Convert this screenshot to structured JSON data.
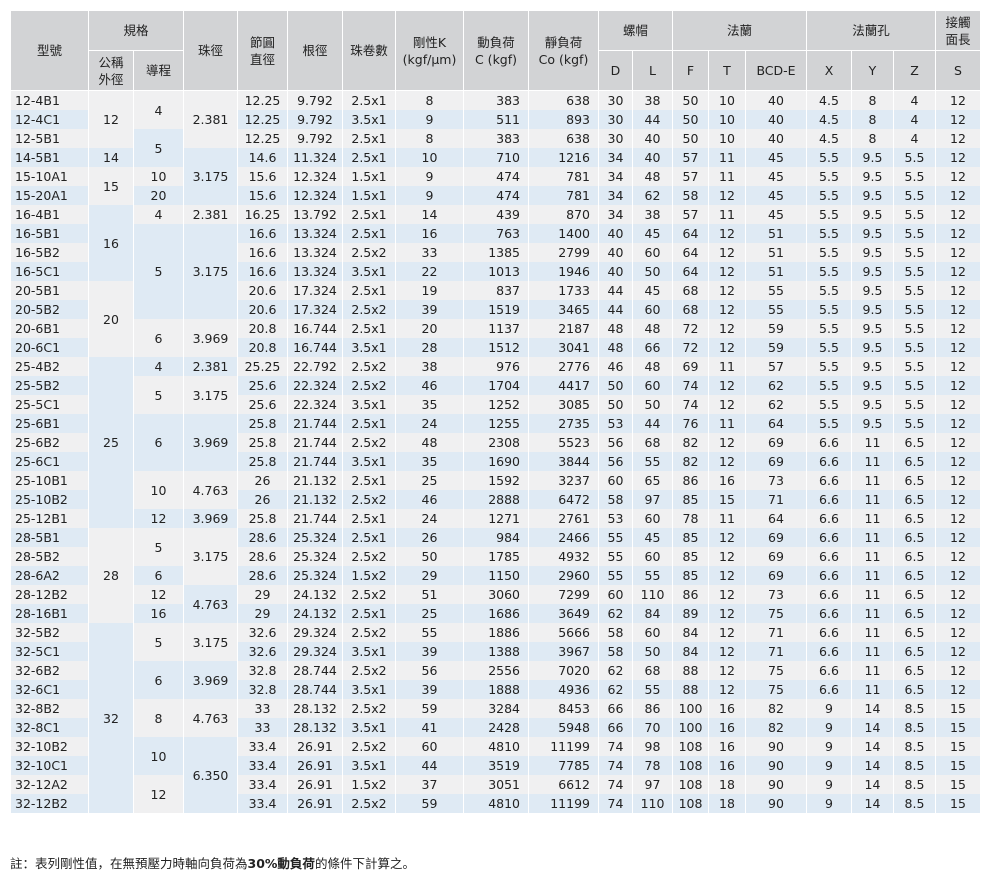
{
  "header": {
    "model": "型號",
    "spec": "規格",
    "diameter": "公稱\n外徑",
    "lead": "導程",
    "ball": "珠徑",
    "pitch": "節圓\n直徑",
    "root": "根徑",
    "turns": "珠卷數",
    "rigidity": "剛性K\n(kgf/μm)",
    "dynamic": "動負荷\nC (kgf)",
    "static": "靜負荷\nCo (kgf)",
    "nut": "螺帽",
    "flange": "法蘭",
    "holes": "法蘭孔",
    "contact": "接觸\n面長",
    "sub": [
      "D",
      "L",
      "F",
      "T",
      "BCD-E",
      "X",
      "Y",
      "Z",
      "S"
    ]
  },
  "diameter": [
    {
      "text": "12",
      "span": 3
    },
    {
      "text": "14",
      "span": 1
    },
    {
      "text": "15",
      "span": 2
    },
    {
      "text": "16",
      "span": 4
    },
    {
      "text": "20",
      "span": 4
    },
    {
      "text": "25",
      "span": 9
    },
    {
      "text": "28",
      "span": 5
    },
    {
      "text": "32",
      "span": 10
    }
  ],
  "lead": [
    {
      "text": "4",
      "span": 2
    },
    {
      "text": "5",
      "span": 2
    },
    {
      "text": "10",
      "span": 1
    },
    {
      "text": "20",
      "span": 1
    },
    {
      "text": "4",
      "span": 1
    },
    {
      "text": "5",
      "span": 5
    },
    {
      "text": "6",
      "span": 2
    },
    {
      "text": "4",
      "span": 1
    },
    {
      "text": "5",
      "span": 2
    },
    {
      "text": "6",
      "span": 3
    },
    {
      "text": "10",
      "span": 2
    },
    {
      "text": "12",
      "span": 1
    },
    {
      "text": "5",
      "span": 2
    },
    {
      "text": "6",
      "span": 1
    },
    {
      "text": "12",
      "span": 1
    },
    {
      "text": "16",
      "span": 1
    },
    {
      "text": "5",
      "span": 2
    },
    {
      "text": "6",
      "span": 2
    },
    {
      "text": "8",
      "span": 2
    },
    {
      "text": "10",
      "span": 2
    },
    {
      "text": "12",
      "span": 2
    }
  ],
  "ball": [
    {
      "text": "2.381",
      "span": 3
    },
    {
      "text": "3.175",
      "span": 3
    },
    {
      "text": "2.381",
      "span": 1
    },
    {
      "text": "3.175",
      "span": 5
    },
    {
      "text": "3.969",
      "span": 2
    },
    {
      "text": "2.381",
      "span": 1
    },
    {
      "text": "3.175",
      "span": 2
    },
    {
      "text": "3.969",
      "span": 3
    },
    {
      "text": "4.763",
      "span": 2
    },
    {
      "text": "3.969",
      "span": 1
    },
    {
      "text": "3.175",
      "span": 3
    },
    {
      "text": "4.763",
      "span": 2
    },
    {
      "text": "3.175",
      "span": 2
    },
    {
      "text": "3.969",
      "span": 2
    },
    {
      "text": "4.763",
      "span": 2
    },
    {
      "text": "6.350",
      "span": 4
    }
  ],
  "rows": [
    [
      "12-4B1",
      "12.25",
      "9.792",
      "2.5x1",
      "8",
      "383",
      "638",
      "30",
      "38",
      "50",
      "10",
      "40",
      "4.5",
      "8",
      "4",
      "12"
    ],
    [
      "12-4C1",
      "12.25",
      "9.792",
      "3.5x1",
      "9",
      "511",
      "893",
      "30",
      "44",
      "50",
      "10",
      "40",
      "4.5",
      "8",
      "4",
      "12"
    ],
    [
      "12-5B1",
      "12.25",
      "9.792",
      "2.5x1",
      "8",
      "383",
      "638",
      "30",
      "40",
      "50",
      "10",
      "40",
      "4.5",
      "8",
      "4",
      "12"
    ],
    [
      "14-5B1",
      "14.6",
      "11.324",
      "2.5x1",
      "10",
      "710",
      "1216",
      "34",
      "40",
      "57",
      "11",
      "45",
      "5.5",
      "9.5",
      "5.5",
      "12"
    ],
    [
      "15-10A1",
      "15.6",
      "12.324",
      "1.5x1",
      "9",
      "474",
      "781",
      "34",
      "48",
      "57",
      "11",
      "45",
      "5.5",
      "9.5",
      "5.5",
      "12"
    ],
    [
      "15-20A1",
      "15.6",
      "12.324",
      "1.5x1",
      "9",
      "474",
      "781",
      "34",
      "62",
      "58",
      "12",
      "45",
      "5.5",
      "9.5",
      "5.5",
      "12"
    ],
    [
      "16-4B1",
      "16.25",
      "13.792",
      "2.5x1",
      "14",
      "439",
      "870",
      "34",
      "38",
      "57",
      "11",
      "45",
      "5.5",
      "9.5",
      "5.5",
      "12"
    ],
    [
      "16-5B1",
      "16.6",
      "13.324",
      "2.5x1",
      "16",
      "763",
      "1400",
      "40",
      "45",
      "64",
      "12",
      "51",
      "5.5",
      "9.5",
      "5.5",
      "12"
    ],
    [
      "16-5B2",
      "16.6",
      "13.324",
      "2.5x2",
      "33",
      "1385",
      "2799",
      "40",
      "60",
      "64",
      "12",
      "51",
      "5.5",
      "9.5",
      "5.5",
      "12"
    ],
    [
      "16-5C1",
      "16.6",
      "13.324",
      "3.5x1",
      "22",
      "1013",
      "1946",
      "40",
      "50",
      "64",
      "12",
      "51",
      "5.5",
      "9.5",
      "5.5",
      "12"
    ],
    [
      "20-5B1",
      "20.6",
      "17.324",
      "2.5x1",
      "19",
      "837",
      "1733",
      "44",
      "45",
      "68",
      "12",
      "55",
      "5.5",
      "9.5",
      "5.5",
      "12"
    ],
    [
      "20-5B2",
      "20.6",
      "17.324",
      "2.5x2",
      "39",
      "1519",
      "3465",
      "44",
      "60",
      "68",
      "12",
      "55",
      "5.5",
      "9.5",
      "5.5",
      "12"
    ],
    [
      "20-6B1",
      "20.8",
      "16.744",
      "2.5x1",
      "20",
      "1137",
      "2187",
      "48",
      "48",
      "72",
      "12",
      "59",
      "5.5",
      "9.5",
      "5.5",
      "12"
    ],
    [
      "20-6C1",
      "20.8",
      "16.744",
      "3.5x1",
      "28",
      "1512",
      "3041",
      "48",
      "66",
      "72",
      "12",
      "59",
      "5.5",
      "9.5",
      "5.5",
      "12"
    ],
    [
      "25-4B2",
      "25.25",
      "22.792",
      "2.5x2",
      "38",
      "976",
      "2776",
      "46",
      "48",
      "69",
      "11",
      "57",
      "5.5",
      "9.5",
      "5.5",
      "12"
    ],
    [
      "25-5B2",
      "25.6",
      "22.324",
      "2.5x2",
      "46",
      "1704",
      "4417",
      "50",
      "60",
      "74",
      "12",
      "62",
      "5.5",
      "9.5",
      "5.5",
      "12"
    ],
    [
      "25-5C1",
      "25.6",
      "22.324",
      "3.5x1",
      "35",
      "1252",
      "3085",
      "50",
      "50",
      "74",
      "12",
      "62",
      "5.5",
      "9.5",
      "5.5",
      "12"
    ],
    [
      "25-6B1",
      "25.8",
      "21.744",
      "2.5x1",
      "24",
      "1255",
      "2735",
      "53",
      "44",
      "76",
      "11",
      "64",
      "5.5",
      "9.5",
      "5.5",
      "12"
    ],
    [
      "25-6B2",
      "25.8",
      "21.744",
      "2.5x2",
      "48",
      "2308",
      "5523",
      "56",
      "68",
      "82",
      "12",
      "69",
      "6.6",
      "11",
      "6.5",
      "12"
    ],
    [
      "25-6C1",
      "25.8",
      "21.744",
      "3.5x1",
      "35",
      "1690",
      "3844",
      "56",
      "55",
      "82",
      "12",
      "69",
      "6.6",
      "11",
      "6.5",
      "12"
    ],
    [
      "25-10B1",
      "26",
      "21.132",
      "2.5x1",
      "25",
      "1592",
      "3237",
      "60",
      "65",
      "86",
      "16",
      "73",
      "6.6",
      "11",
      "6.5",
      "12"
    ],
    [
      "25-10B2",
      "26",
      "21.132",
      "2.5x2",
      "46",
      "2888",
      "6472",
      "58",
      "97",
      "85",
      "15",
      "71",
      "6.6",
      "11",
      "6.5",
      "12"
    ],
    [
      "25-12B1",
      "25.8",
      "21.744",
      "2.5x1",
      "24",
      "1271",
      "2761",
      "53",
      "60",
      "78",
      "11",
      "64",
      "6.6",
      "11",
      "6.5",
      "12"
    ],
    [
      "28-5B1",
      "28.6",
      "25.324",
      "2.5x1",
      "26",
      "984",
      "2466",
      "55",
      "45",
      "85",
      "12",
      "69",
      "6.6",
      "11",
      "6.5",
      "12"
    ],
    [
      "28-5B2",
      "28.6",
      "25.324",
      "2.5x2",
      "50",
      "1785",
      "4932",
      "55",
      "60",
      "85",
      "12",
      "69",
      "6.6",
      "11",
      "6.5",
      "12"
    ],
    [
      "28-6A2",
      "28.6",
      "25.324",
      "1.5x2",
      "29",
      "1150",
      "2960",
      "55",
      "55",
      "85",
      "12",
      "69",
      "6.6",
      "11",
      "6.5",
      "12"
    ],
    [
      "28-12B2",
      "29",
      "24.132",
      "2.5x2",
      "51",
      "3060",
      "7299",
      "60",
      "110",
      "86",
      "12",
      "73",
      "6.6",
      "11",
      "6.5",
      "12"
    ],
    [
      "28-16B1",
      "29",
      "24.132",
      "2.5x1",
      "25",
      "1686",
      "3649",
      "62",
      "84",
      "89",
      "12",
      "75",
      "6.6",
      "11",
      "6.5",
      "12"
    ],
    [
      "32-5B2",
      "32.6",
      "29.324",
      "2.5x2",
      "55",
      "1886",
      "5666",
      "58",
      "60",
      "84",
      "12",
      "71",
      "6.6",
      "11",
      "6.5",
      "12"
    ],
    [
      "32-5C1",
      "32.6",
      "29.324",
      "3.5x1",
      "39",
      "1388",
      "3967",
      "58",
      "50",
      "84",
      "12",
      "71",
      "6.6",
      "11",
      "6.5",
      "12"
    ],
    [
      "32-6B2",
      "32.8",
      "28.744",
      "2.5x2",
      "56",
      "2556",
      "7020",
      "62",
      "68",
      "88",
      "12",
      "75",
      "6.6",
      "11",
      "6.5",
      "12"
    ],
    [
      "32-6C1",
      "32.8",
      "28.744",
      "3.5x1",
      "39",
      "1888",
      "4936",
      "62",
      "55",
      "88",
      "12",
      "75",
      "6.6",
      "11",
      "6.5",
      "12"
    ],
    [
      "32-8B2",
      "33",
      "28.132",
      "2.5x2",
      "59",
      "3284",
      "8453",
      "66",
      "86",
      "100",
      "16",
      "82",
      "9",
      "14",
      "8.5",
      "15"
    ],
    [
      "32-8C1",
      "33",
      "28.132",
      "3.5x1",
      "41",
      "2428",
      "5948",
      "66",
      "70",
      "100",
      "16",
      "82",
      "9",
      "14",
      "8.5",
      "15"
    ],
    [
      "32-10B2",
      "33.4",
      "26.91",
      "2.5x2",
      "60",
      "4810",
      "11199",
      "74",
      "98",
      "108",
      "16",
      "90",
      "9",
      "14",
      "8.5",
      "15"
    ],
    [
      "32-10C1",
      "33.4",
      "26.91",
      "3.5x1",
      "44",
      "3519",
      "7785",
      "74",
      "78",
      "108",
      "16",
      "90",
      "9",
      "14",
      "8.5",
      "15"
    ],
    [
      "32-12A2",
      "33.4",
      "26.91",
      "1.5x2",
      "37",
      "3051",
      "6612",
      "74",
      "97",
      "108",
      "18",
      "90",
      "9",
      "14",
      "8.5",
      "15"
    ],
    [
      "32-12B2",
      "33.4",
      "26.91",
      "2.5x2",
      "59",
      "4810",
      "11199",
      "74",
      "110",
      "108",
      "18",
      "90",
      "9",
      "14",
      "8.5",
      "15"
    ]
  ],
  "note": [
    "註：表列剛性值，在無預壓力時軸向負荷為",
    "30%動負荷",
    "的條件下計算之。"
  ]
}
